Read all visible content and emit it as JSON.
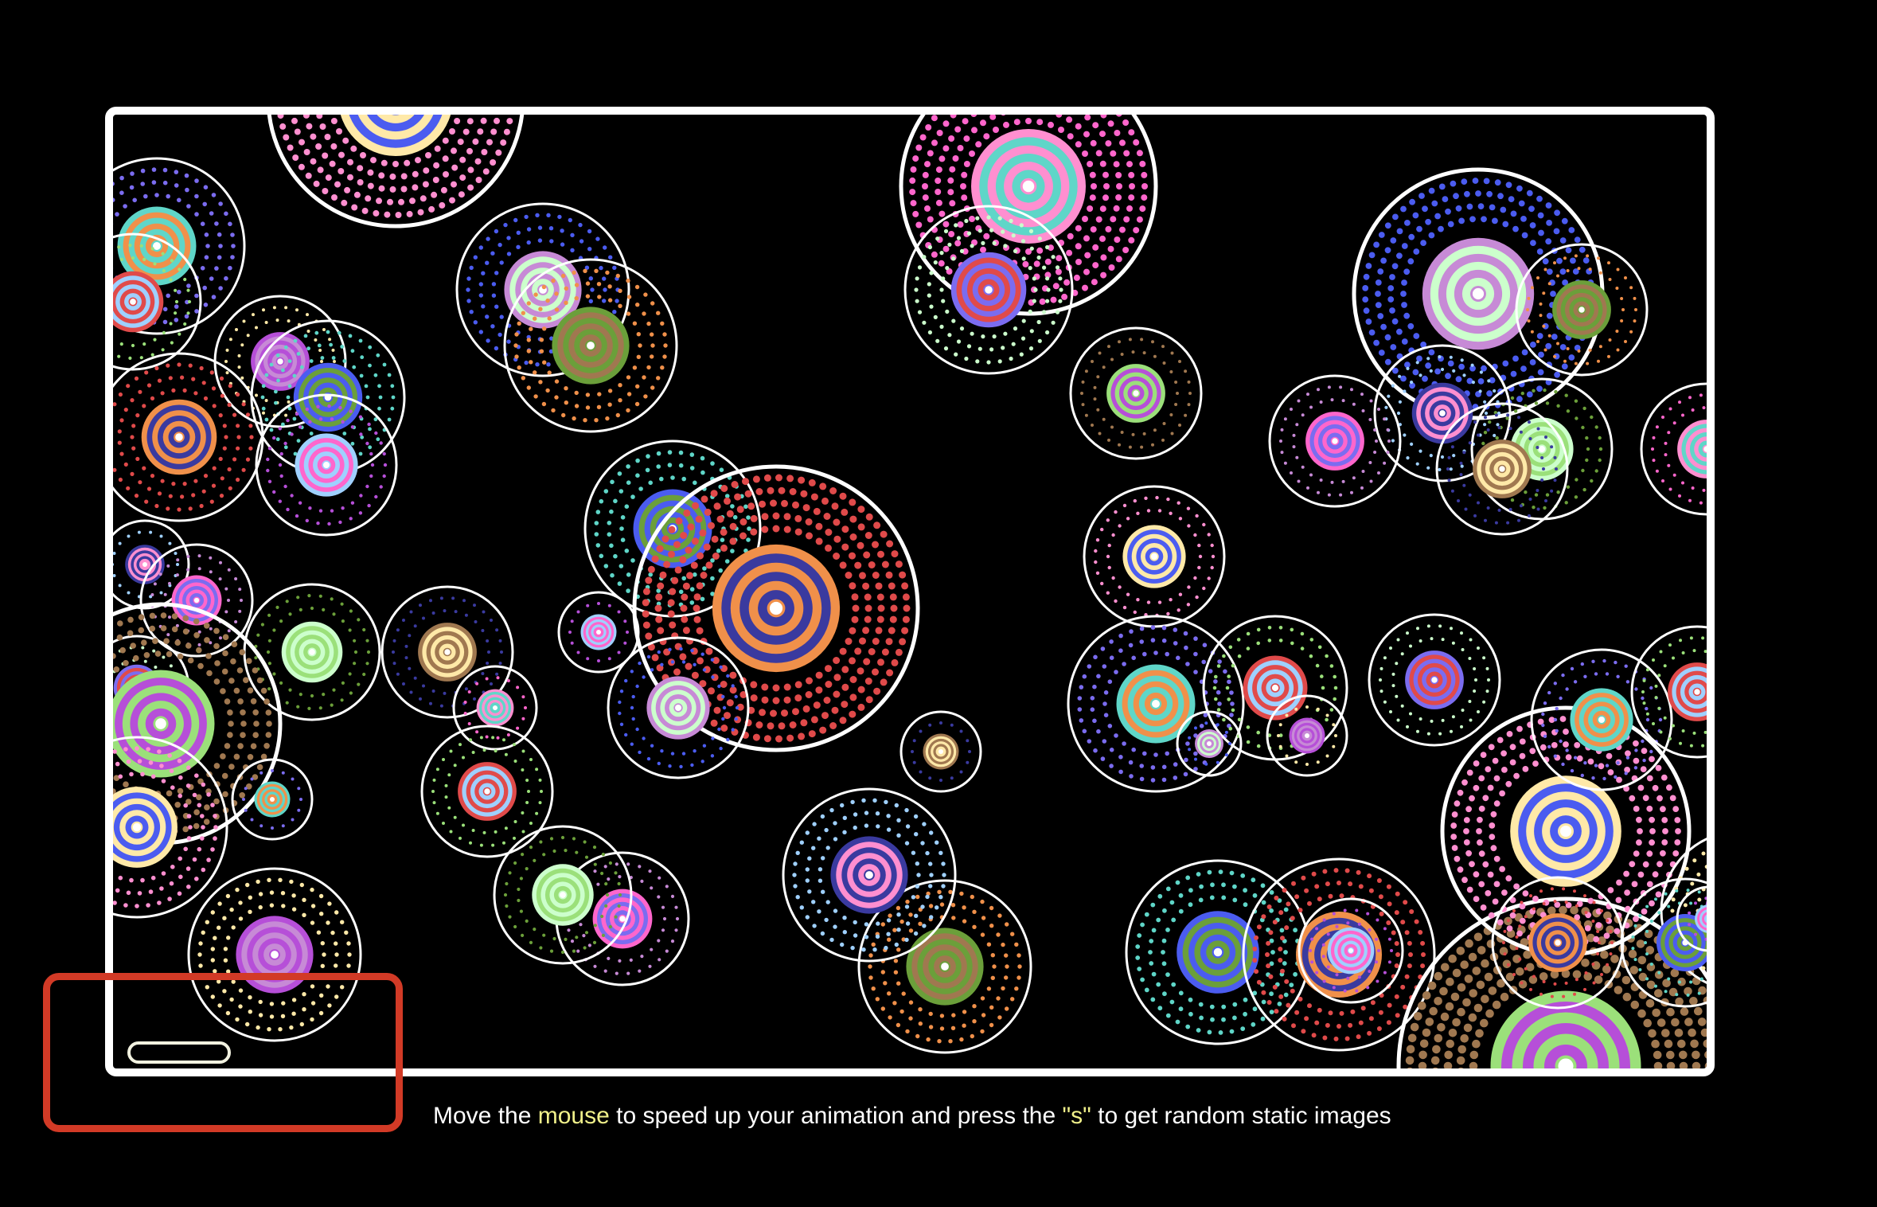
{
  "instructions": {
    "part1": "Move the ",
    "keyword1": "mouse",
    "part2": " to speed up your animation and press the ",
    "keyword2": "\"s\"",
    "part3": " to get random static images"
  },
  "colors": {
    "background": "#000000",
    "frame": "#ffffff",
    "highlight_box": "#d23a26",
    "keyword": "#f0f08a"
  },
  "artwork": {
    "description_kind": "animated concentric dotted circles",
    "palette": [
      "#ff8fd0",
      "#7b6cf0",
      "#9be07a",
      "#ffe9a8",
      "#5fd6c8",
      "#e04a4a",
      "#b64fd8",
      "#4b5cf0",
      "#f0904a",
      "#9fd0ff",
      "#c78ad6",
      "#6b9f3a",
      "#3a3a9f",
      "#ff66cc",
      "#ccffcc",
      "#a07850"
    ]
  }
}
